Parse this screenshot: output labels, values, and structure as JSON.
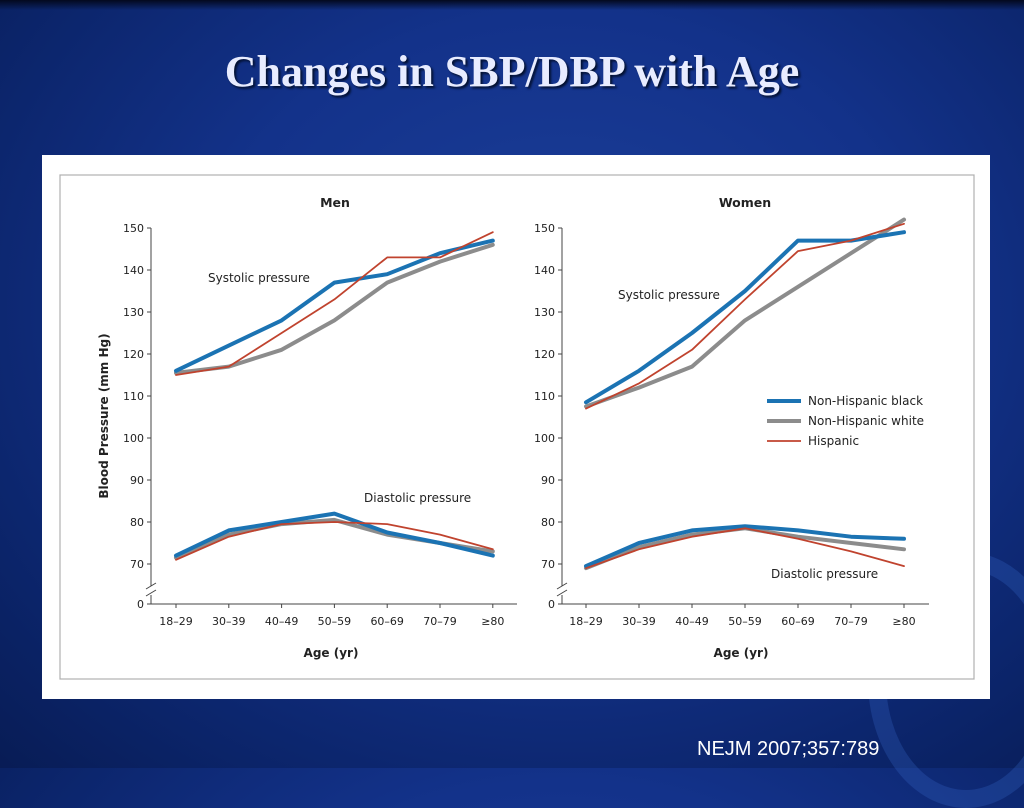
{
  "slide": {
    "title": "Changes in SBP/DBP with Age",
    "citation": "NEJM 2007;357:789"
  },
  "colors": {
    "Non-Hispanic black": "#1b73b3",
    "Non-Hispanic white": "#8c8c8c",
    "Hispanic": "#c0432e"
  },
  "legend": {
    "items": [
      "Non-Hispanic black",
      "Non-Hispanic white",
      "Hispanic"
    ],
    "placement": "right"
  },
  "chart_data": [
    {
      "type": "line",
      "title": "Men",
      "xlabel": "Age (yr)",
      "ylabel": "Blood Pressure (mm Hg)",
      "categories": [
        "18–29",
        "30–39",
        "40–49",
        "50–59",
        "60–69",
        "70–79",
        "≥80"
      ],
      "yticks": [
        0,
        70,
        80,
        90,
        100,
        110,
        120,
        130,
        140,
        150
      ],
      "ylim": [
        0,
        150
      ],
      "axis_break": true,
      "grid": false,
      "annotations": [
        "Systolic pressure",
        "Diastolic pressure"
      ],
      "series": [
        {
          "name": "Non-Hispanic black",
          "group": "Systolic pressure",
          "values": [
            116,
            122,
            128,
            137,
            139,
            144,
            147
          ]
        },
        {
          "name": "Non-Hispanic white",
          "group": "Systolic pressure",
          "values": [
            115.5,
            117,
            121,
            128,
            137,
            142,
            146
          ]
        },
        {
          "name": "Hispanic",
          "group": "Systolic pressure",
          "values": [
            115,
            117,
            125,
            133,
            143,
            143,
            149
          ]
        },
        {
          "name": "Non-Hispanic black",
          "group": "Diastolic pressure",
          "values": [
            72,
            78,
            80,
            82,
            77.5,
            75,
            72
          ]
        },
        {
          "name": "Non-Hispanic white",
          "group": "Diastolic pressure",
          "values": [
            71.5,
            77,
            79.5,
            80.5,
            77,
            75,
            73
          ]
        },
        {
          "name": "Hispanic",
          "group": "Diastolic pressure",
          "values": [
            71,
            76.5,
            79.5,
            80,
            79.5,
            77,
            73.5
          ]
        }
      ]
    },
    {
      "type": "line",
      "title": "Women",
      "xlabel": "Age (yr)",
      "ylabel": "",
      "categories": [
        "18–29",
        "30–39",
        "40–49",
        "50–59",
        "60–69",
        "70–79",
        "≥80"
      ],
      "yticks": [
        0,
        70,
        80,
        90,
        100,
        110,
        120,
        130,
        140,
        150
      ],
      "ylim": [
        0,
        150
      ],
      "axis_break": true,
      "grid": false,
      "annotations": [
        "Systolic pressure",
        "Diastolic pressure"
      ],
      "series": [
        {
          "name": "Non-Hispanic black",
          "group": "Systolic pressure",
          "values": [
            108.5,
            116,
            125,
            135,
            147,
            147,
            149
          ]
        },
        {
          "name": "Non-Hispanic white",
          "group": "Systolic pressure",
          "values": [
            107.5,
            112,
            117,
            128,
            136,
            144,
            152
          ]
        },
        {
          "name": "Hispanic",
          "group": "Systolic pressure",
          "values": [
            107,
            113,
            121,
            133,
            144.5,
            147,
            151
          ]
        },
        {
          "name": "Non-Hispanic black",
          "group": "Diastolic pressure",
          "values": [
            69.5,
            75,
            78,
            79,
            78,
            76.5,
            76
          ]
        },
        {
          "name": "Non-Hispanic white",
          "group": "Diastolic pressure",
          "values": [
            69,
            74,
            77,
            78.5,
            76.5,
            75,
            73.5
          ]
        },
        {
          "name": "Hispanic",
          "group": "Diastolic pressure",
          "values": [
            69,
            73.5,
            76.5,
            78.5,
            76,
            73,
            69.5
          ]
        }
      ]
    }
  ]
}
